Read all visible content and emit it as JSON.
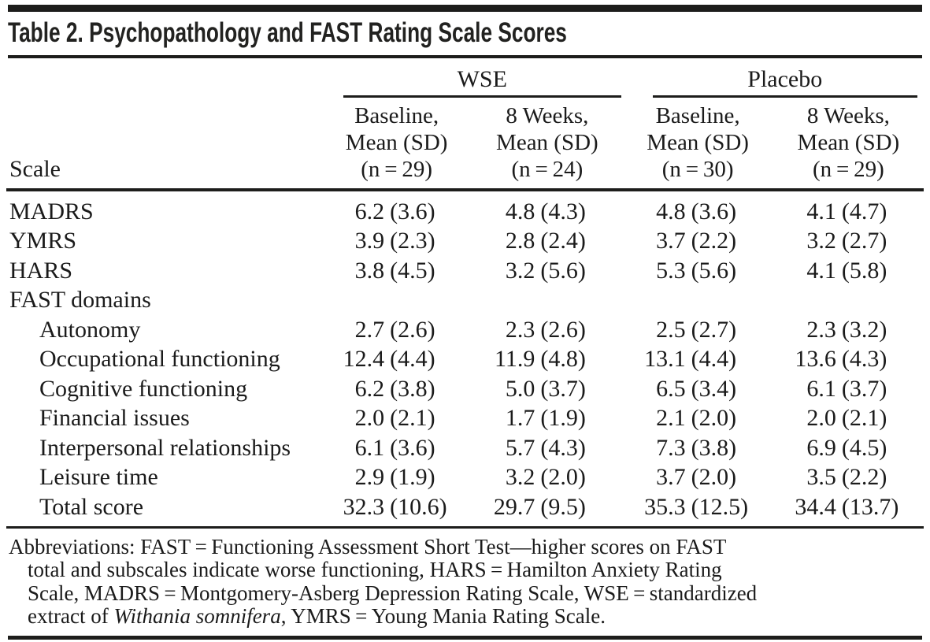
{
  "table": {
    "title": "Table 2. Psychopathology and FAST Rating Scale Scores",
    "groups": [
      {
        "label": "WSE"
      },
      {
        "label": "Placebo"
      }
    ],
    "scale_header": "Scale",
    "columns": [
      {
        "period": "Baseline,",
        "measure": "Mean (SD)",
        "n": "(n = 29)"
      },
      {
        "period": "8 Weeks,",
        "measure": "Mean (SD)",
        "n": "(n = 24)"
      },
      {
        "period": "Baseline,",
        "measure": "Mean (SD)",
        "n": "(n = 30)"
      },
      {
        "period": "8 Weeks,",
        "measure": "Mean (SD)",
        "n": "(n = 29)"
      }
    ],
    "rows": [
      {
        "label": "MADRS",
        "indent": false,
        "section": false,
        "values": [
          {
            "mean": "6.2",
            "sd": "(3.6)"
          },
          {
            "mean": "4.8",
            "sd": "(4.3)"
          },
          {
            "mean": "4.8",
            "sd": "(3.6)"
          },
          {
            "mean": "4.1",
            "sd": "(4.7)"
          }
        ]
      },
      {
        "label": "YMRS",
        "indent": false,
        "section": false,
        "values": [
          {
            "mean": "3.9",
            "sd": "(2.3)"
          },
          {
            "mean": "2.8",
            "sd": "(2.4)"
          },
          {
            "mean": "3.7",
            "sd": "(2.2)"
          },
          {
            "mean": "3.2",
            "sd": "(2.7)"
          }
        ]
      },
      {
        "label": "HARS",
        "indent": false,
        "section": false,
        "values": [
          {
            "mean": "3.8",
            "sd": "(4.5)"
          },
          {
            "mean": "3.2",
            "sd": "(5.6)"
          },
          {
            "mean": "5.3",
            "sd": "(5.6)"
          },
          {
            "mean": "4.1",
            "sd": "(5.8)"
          }
        ]
      },
      {
        "label": "FAST domains",
        "indent": false,
        "section": true,
        "values": []
      },
      {
        "label": "Autonomy",
        "indent": true,
        "section": false,
        "values": [
          {
            "mean": "2.7",
            "sd": "(2.6)"
          },
          {
            "mean": "2.3",
            "sd": "(2.6)"
          },
          {
            "mean": "2.5",
            "sd": "(2.7)"
          },
          {
            "mean": "2.3",
            "sd": "(3.2)"
          }
        ]
      },
      {
        "label": "Occupational functioning",
        "indent": true,
        "section": false,
        "values": [
          {
            "mean": "12.4",
            "sd": "(4.4)"
          },
          {
            "mean": "11.9",
            "sd": "(4.8)"
          },
          {
            "mean": "13.1",
            "sd": "(4.4)"
          },
          {
            "mean": "13.6",
            "sd": "(4.3)"
          }
        ]
      },
      {
        "label": "Cognitive functioning",
        "indent": true,
        "section": false,
        "values": [
          {
            "mean": "6.2",
            "sd": "(3.8)"
          },
          {
            "mean": "5.0",
            "sd": "(3.7)"
          },
          {
            "mean": "6.5",
            "sd": "(3.4)"
          },
          {
            "mean": "6.1",
            "sd": "(3.7)"
          }
        ]
      },
      {
        "label": "Financial issues",
        "indent": true,
        "section": false,
        "values": [
          {
            "mean": "2.0",
            "sd": "(2.1)"
          },
          {
            "mean": "1.7",
            "sd": "(1.9)"
          },
          {
            "mean": "2.1",
            "sd": "(2.0)"
          },
          {
            "mean": "2.0",
            "sd": "(2.1)"
          }
        ]
      },
      {
        "label": "Interpersonal relationships",
        "indent": true,
        "section": false,
        "values": [
          {
            "mean": "6.1",
            "sd": "(3.6)"
          },
          {
            "mean": "5.7",
            "sd": "(4.3)"
          },
          {
            "mean": "7.3",
            "sd": "(3.8)"
          },
          {
            "mean": "6.9",
            "sd": "(4.5)"
          }
        ]
      },
      {
        "label": "Leisure time",
        "indent": true,
        "section": false,
        "values": [
          {
            "mean": "2.9",
            "sd": "(1.9)"
          },
          {
            "mean": "3.2",
            "sd": "(2.0)"
          },
          {
            "mean": "3.7",
            "sd": "(2.0)"
          },
          {
            "mean": "3.5",
            "sd": "(2.2)"
          }
        ]
      },
      {
        "label": "Total score",
        "indent": true,
        "section": false,
        "values": [
          {
            "mean": "32.3",
            "sd": "(10.6)"
          },
          {
            "mean": "29.7",
            "sd": "(9.5)"
          },
          {
            "mean": "35.3",
            "sd": "(12.5)"
          },
          {
            "mean": "34.4",
            "sd": "(13.7)"
          }
        ]
      }
    ],
    "footnote_lines": [
      {
        "indent": false,
        "parts": [
          {
            "text": "Abbreviations: FAST = Functioning Assessment Short Test—higher scores on FAST",
            "italic": false
          }
        ]
      },
      {
        "indent": true,
        "parts": [
          {
            "text": "total and subscales indicate worse functioning, HARS = Hamilton Anxiety Rating",
            "italic": false
          }
        ]
      },
      {
        "indent": true,
        "parts": [
          {
            "text": "Scale, MADRS = Montgomery-Asberg Depression Rating Scale, WSE = standardized",
            "italic": false
          }
        ]
      },
      {
        "indent": true,
        "parts": [
          {
            "text": "extract of ",
            "italic": false
          },
          {
            "text": "Withania somnifera",
            "italic": true
          },
          {
            "text": ", YMRS = Young Mania Rating Scale.",
            "italic": false
          }
        ]
      }
    ],
    "colors": {
      "rule": "#1d1d1b",
      "text": "#1b1b1b",
      "background": "#ffffff"
    }
  }
}
